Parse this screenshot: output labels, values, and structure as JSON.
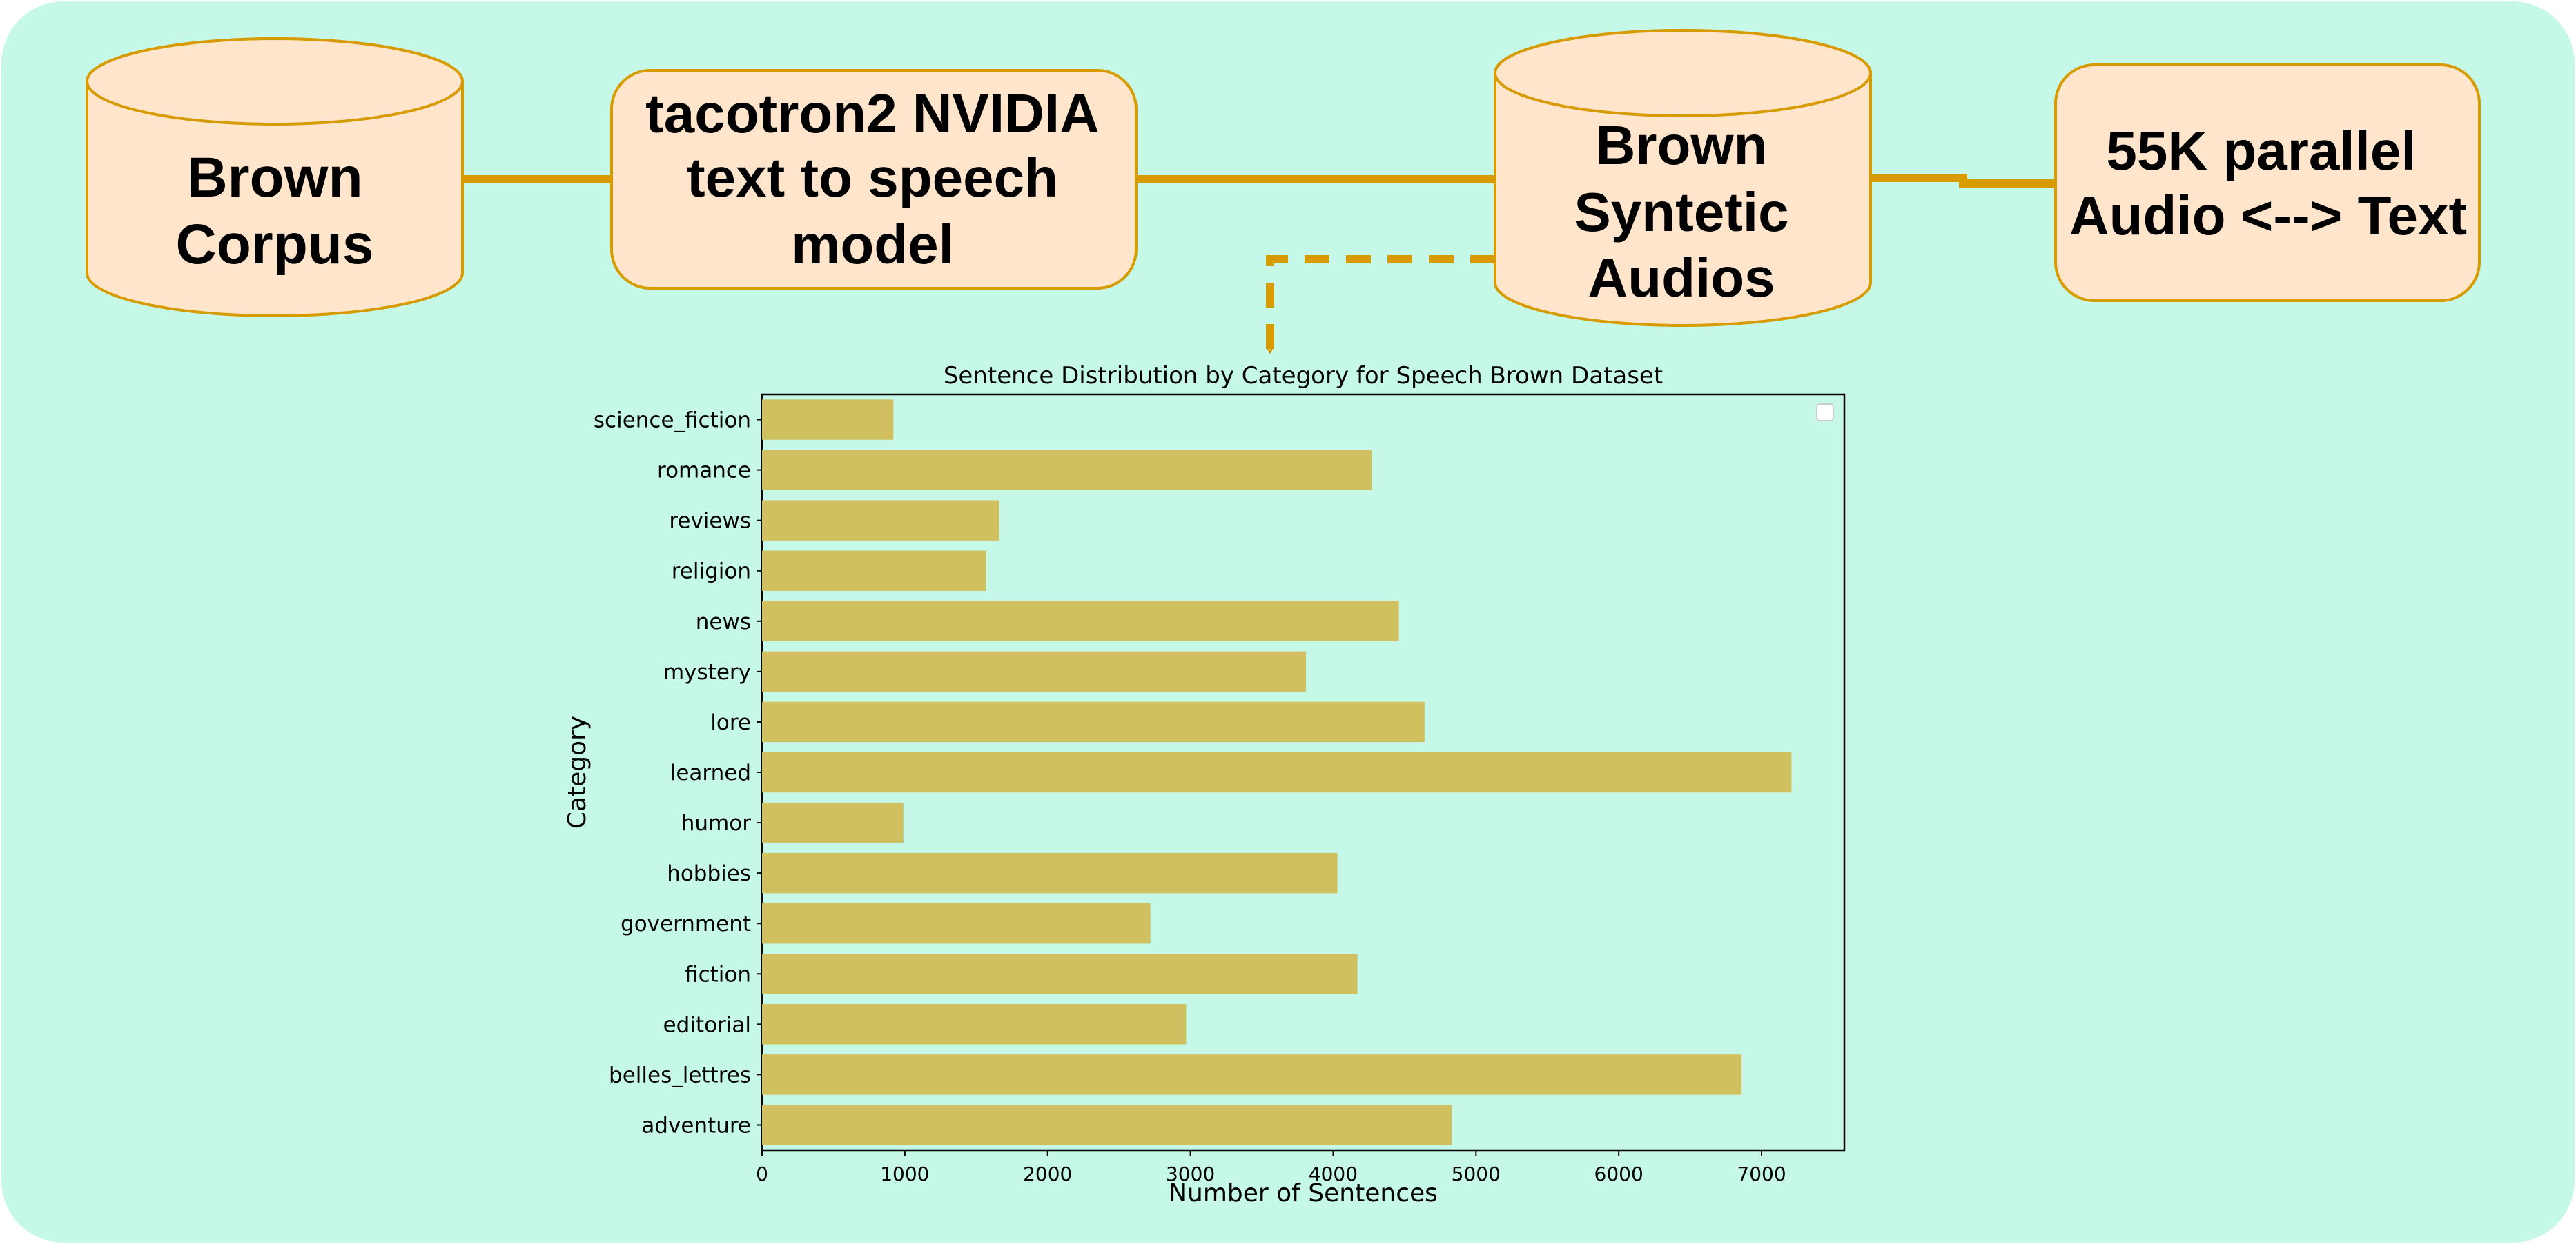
{
  "colors": {
    "background": "#c6f8e8",
    "node_fill": "#ffe5cc",
    "node_stroke": "#d79b00",
    "arrow": "#d79b00",
    "bar": "#d0c060"
  },
  "pipeline": {
    "brown_corpus": {
      "line1": "Brown",
      "line2": "Corpus"
    },
    "tts_model": {
      "line1": "tacotron2 NVIDIA",
      "line2": "text to speech",
      "line3": "model"
    },
    "synthetic_audios": {
      "line1": "Brown",
      "line2": "Syntetic",
      "line3": "Audios"
    },
    "parallel_data": {
      "line1": "55K parallel",
      "line2": "Audio <--> Text"
    }
  },
  "chart_data": {
    "type": "bar",
    "orientation": "horizontal",
    "title": "Sentence Distribution by Category for Speech Brown Dataset",
    "xlabel": "Number of Sentences",
    "ylabel": "Category",
    "xlim": [
      0,
      7580
    ],
    "xticks": [
      0,
      1000,
      2000,
      3000,
      4000,
      5000,
      6000,
      7000
    ],
    "categories": [
      "adventure",
      "belles_lettres",
      "editorial",
      "fiction",
      "government",
      "hobbies",
      "humor",
      "learned",
      "lore",
      "mystery",
      "news",
      "religion",
      "reviews",
      "romance",
      "science_fiction"
    ],
    "values": [
      4830,
      6860,
      2970,
      4170,
      2720,
      4030,
      990,
      7210,
      4640,
      3810,
      4460,
      1570,
      1660,
      4270,
      920
    ],
    "legend": "top-right (empty)",
    "grid": false
  }
}
